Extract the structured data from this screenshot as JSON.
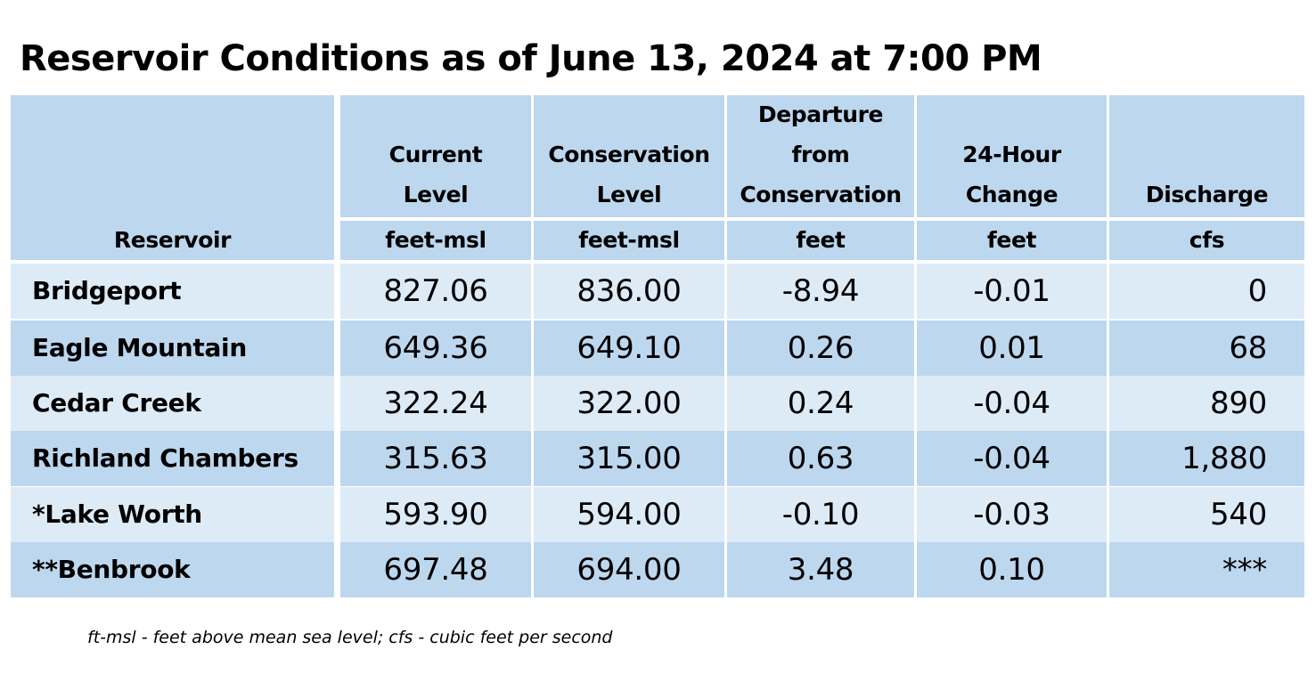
{
  "title": "Reservoir Conditions as of June 13, 2024 at 7:00 PM",
  "colors": {
    "header_bg": "#bdd7ee",
    "row_light": "#ddebf7",
    "row_dark": "#bdd7ee",
    "divider": "#ffffff"
  },
  "chart_data": {
    "type": "table",
    "columns": [
      {
        "label_lines": [
          "Reservoir"
        ],
        "unit": ""
      },
      {
        "label_lines": [
          "Current",
          "Level"
        ],
        "unit": "feet-msl"
      },
      {
        "label_lines": [
          "Conservation",
          "Level"
        ],
        "unit": "feet-msl"
      },
      {
        "label_lines": [
          "Departure",
          "from",
          "Conservation"
        ],
        "unit": "feet"
      },
      {
        "label_lines": [
          "24-Hour",
          "Change"
        ],
        "unit": "feet"
      },
      {
        "label_lines": [
          "Discharge"
        ],
        "unit": "cfs"
      }
    ],
    "rows": [
      {
        "reservoir": "Bridgeport",
        "current": "827.06",
        "conservation": "836.00",
        "departure": "-8.94",
        "change": "-0.01",
        "discharge": "0"
      },
      {
        "reservoir": "Eagle Mountain",
        "current": "649.36",
        "conservation": "649.10",
        "departure": "0.26",
        "change": "0.01",
        "discharge": "68"
      },
      {
        "reservoir": "Cedar Creek",
        "current": "322.24",
        "conservation": "322.00",
        "departure": "0.24",
        "change": "-0.04",
        "discharge": "890"
      },
      {
        "reservoir": "Richland Chambers",
        "current": "315.63",
        "conservation": "315.00",
        "departure": "0.63",
        "change": "-0.04",
        "discharge": "1,880"
      },
      {
        "reservoir": "*Lake Worth",
        "current": "593.90",
        "conservation": "594.00",
        "departure": "-0.10",
        "change": "-0.03",
        "discharge": "540"
      },
      {
        "reservoir": "**Benbrook",
        "current": "697.48",
        "conservation": "694.00",
        "departure": "3.48",
        "change": "0.10",
        "discharge": "***"
      }
    ]
  },
  "footnote": "ft-msl - feet above mean sea level; cfs - cubic feet per second"
}
